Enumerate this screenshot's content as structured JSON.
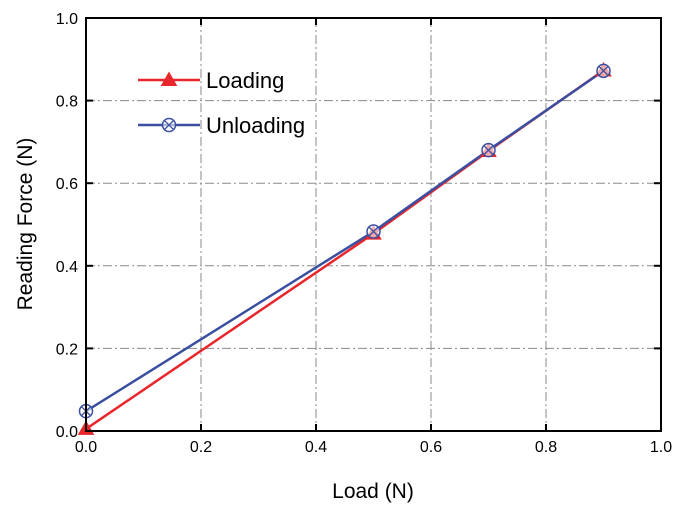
{
  "chart_data": {
    "type": "line",
    "title": "",
    "xlabel": "Load (N)",
    "ylabel": "Reading Force (N)",
    "xlim": [
      0.0,
      1.0
    ],
    "ylim": [
      0.0,
      1.0
    ],
    "xticks": [
      "0.0",
      "0.2",
      "0.4",
      "0.6",
      "0.8",
      "1.0"
    ],
    "yticks": [
      "0.0",
      "0.2",
      "0.4",
      "0.6",
      "0.8",
      "1.0"
    ],
    "grid": true,
    "legend_position": "top-left",
    "series": [
      {
        "name": "Loading",
        "color": "#e8262b",
        "marker": "filled-triangle",
        "points": [
          {
            "x": 0.0,
            "y": 0.005
          },
          {
            "x": 0.5,
            "y": 0.478
          },
          {
            "x": 0.7,
            "y": 0.678
          },
          {
            "x": 0.9,
            "y": 0.873
          }
        ]
      },
      {
        "name": "Unloading",
        "color": "#3a4fa1",
        "marker": "circle-x",
        "points": [
          {
            "x": 0.0,
            "y": 0.048
          },
          {
            "x": 0.5,
            "y": 0.483
          },
          {
            "x": 0.7,
            "y": 0.68
          },
          {
            "x": 0.9,
            "y": 0.872
          }
        ]
      }
    ]
  }
}
